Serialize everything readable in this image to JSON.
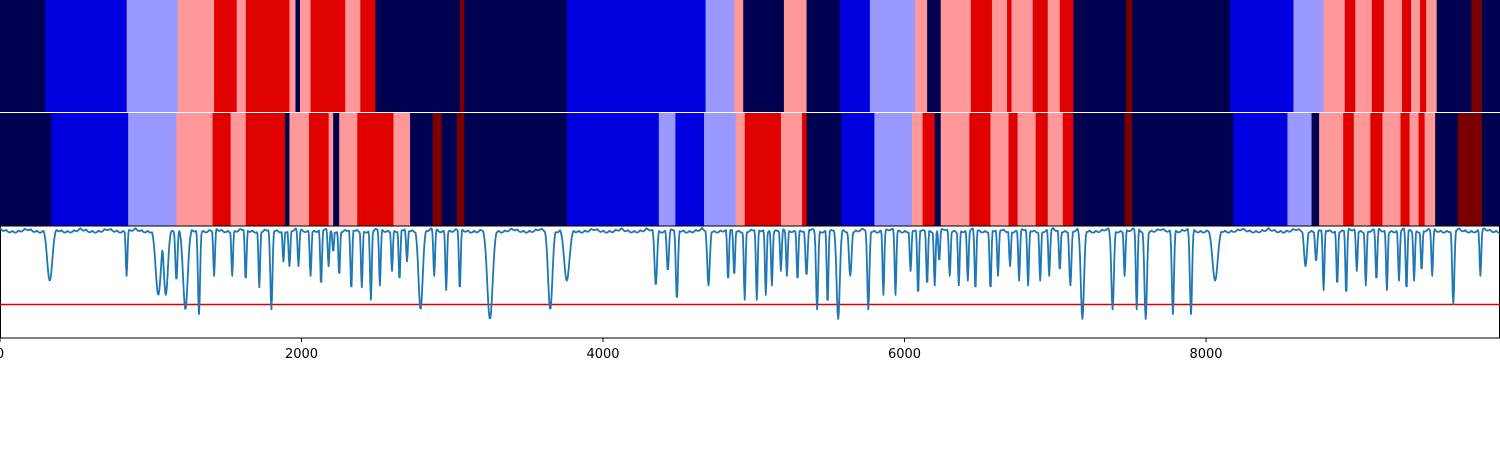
{
  "chart_data": [
    {
      "type": "heatmap",
      "panel": "top-band",
      "xlim": [
        0,
        9950
      ],
      "segments": [
        {
          "x0": 0,
          "x1": 300,
          "class": "navy"
        },
        {
          "x0": 300,
          "x1": 840,
          "class": "blue"
        },
        {
          "x0": 840,
          "x1": 1180,
          "class": "lightblue"
        },
        {
          "x0": 1180,
          "x1": 1420,
          "class": "pink"
        },
        {
          "x0": 1420,
          "x1": 1570,
          "class": "red"
        },
        {
          "x0": 1570,
          "x1": 1630,
          "class": "pink"
        },
        {
          "x0": 1630,
          "x1": 1920,
          "class": "red"
        },
        {
          "x0": 1920,
          "x1": 1960,
          "class": "pink"
        },
        {
          "x0": 1960,
          "x1": 1990,
          "class": "navy"
        },
        {
          "x0": 1990,
          "x1": 2060,
          "class": "pink"
        },
        {
          "x0": 2060,
          "x1": 2290,
          "class": "red"
        },
        {
          "x0": 2290,
          "x1": 2390,
          "class": "pink"
        },
        {
          "x0": 2390,
          "x1": 2490,
          "class": "red"
        },
        {
          "x0": 2490,
          "x1": 3050,
          "class": "navy"
        },
        {
          "x0": 3050,
          "x1": 3080,
          "class": "darkred"
        },
        {
          "x0": 3080,
          "x1": 3760,
          "class": "navy"
        },
        {
          "x0": 3760,
          "x1": 4680,
          "class": "blue"
        },
        {
          "x0": 4680,
          "x1": 4870,
          "class": "lightblue"
        },
        {
          "x0": 4870,
          "x1": 4930,
          "class": "pink"
        },
        {
          "x0": 4930,
          "x1": 5200,
          "class": "navy"
        },
        {
          "x0": 5200,
          "x1": 5350,
          "class": "pink"
        },
        {
          "x0": 5350,
          "x1": 5570,
          "class": "navy"
        },
        {
          "x0": 5570,
          "x1": 5770,
          "class": "blue"
        },
        {
          "x0": 5770,
          "x1": 6070,
          "class": "lightblue"
        },
        {
          "x0": 6070,
          "x1": 6150,
          "class": "pink"
        },
        {
          "x0": 6150,
          "x1": 6240,
          "class": "navy"
        },
        {
          "x0": 6240,
          "x1": 6440,
          "class": "pink"
        },
        {
          "x0": 6440,
          "x1": 6580,
          "class": "red"
        },
        {
          "x0": 6580,
          "x1": 6680,
          "class": "pink"
        },
        {
          "x0": 6680,
          "x1": 6710,
          "class": "red"
        },
        {
          "x0": 6710,
          "x1": 6850,
          "class": "pink"
        },
        {
          "x0": 6850,
          "x1": 6950,
          "class": "red"
        },
        {
          "x0": 6950,
          "x1": 7030,
          "class": "pink"
        },
        {
          "x0": 7030,
          "x1": 7120,
          "class": "red"
        },
        {
          "x0": 7120,
          "x1": 7470,
          "class": "navy"
        },
        {
          "x0": 7470,
          "x1": 7510,
          "class": "darkred"
        },
        {
          "x0": 7510,
          "x1": 8160,
          "class": "navy"
        },
        {
          "x0": 8160,
          "x1": 8580,
          "class": "blue"
        },
        {
          "x0": 8580,
          "x1": 8780,
          "class": "lightblue"
        },
        {
          "x0": 8780,
          "x1": 8920,
          "class": "pink"
        },
        {
          "x0": 8920,
          "x1": 8990,
          "class": "red"
        },
        {
          "x0": 8990,
          "x1": 9100,
          "class": "pink"
        },
        {
          "x0": 9100,
          "x1": 9180,
          "class": "red"
        },
        {
          "x0": 9180,
          "x1": 9300,
          "class": "pink"
        },
        {
          "x0": 9300,
          "x1": 9360,
          "class": "red"
        },
        {
          "x0": 9360,
          "x1": 9420,
          "class": "pink"
        },
        {
          "x0": 9420,
          "x1": 9460,
          "class": "red"
        },
        {
          "x0": 9460,
          "x1": 9530,
          "class": "pink"
        },
        {
          "x0": 9530,
          "x1": 9760,
          "class": "navy"
        },
        {
          "x0": 9760,
          "x1": 9830,
          "class": "darkred"
        },
        {
          "x0": 9830,
          "x1": 9950,
          "class": "navy"
        }
      ]
    },
    {
      "type": "heatmap",
      "panel": "middle-band",
      "xlim": [
        0,
        9950
      ],
      "segments": [
        {
          "x0": 0,
          "x1": 340,
          "class": "navy"
        },
        {
          "x0": 340,
          "x1": 850,
          "class": "blue"
        },
        {
          "x0": 850,
          "x1": 1170,
          "class": "lightblue"
        },
        {
          "x0": 1170,
          "x1": 1410,
          "class": "pink"
        },
        {
          "x0": 1410,
          "x1": 1530,
          "class": "red"
        },
        {
          "x0": 1530,
          "x1": 1630,
          "class": "pink"
        },
        {
          "x0": 1630,
          "x1": 1890,
          "class": "red"
        },
        {
          "x0": 1890,
          "x1": 1920,
          "class": "navy"
        },
        {
          "x0": 1920,
          "x1": 2050,
          "class": "pink"
        },
        {
          "x0": 2050,
          "x1": 2180,
          "class": "red"
        },
        {
          "x0": 2180,
          "x1": 2210,
          "class": "pink"
        },
        {
          "x0": 2210,
          "x1": 2250,
          "class": "navy"
        },
        {
          "x0": 2250,
          "x1": 2370,
          "class": "pink"
        },
        {
          "x0": 2370,
          "x1": 2610,
          "class": "red"
        },
        {
          "x0": 2610,
          "x1": 2720,
          "class": "pink"
        },
        {
          "x0": 2720,
          "x1": 2870,
          "class": "navy"
        },
        {
          "x0": 2870,
          "x1": 2930,
          "class": "darkred"
        },
        {
          "x0": 2930,
          "x1": 3030,
          "class": "navy"
        },
        {
          "x0": 3030,
          "x1": 3080,
          "class": "darkred"
        },
        {
          "x0": 3080,
          "x1": 3760,
          "class": "navy"
        },
        {
          "x0": 3760,
          "x1": 4370,
          "class": "blue"
        },
        {
          "x0": 4370,
          "x1": 4480,
          "class": "lightblue"
        },
        {
          "x0": 4480,
          "x1": 4670,
          "class": "blue"
        },
        {
          "x0": 4670,
          "x1": 4880,
          "class": "lightblue"
        },
        {
          "x0": 4880,
          "x1": 4940,
          "class": "pink"
        },
        {
          "x0": 4940,
          "x1": 5180,
          "class": "red"
        },
        {
          "x0": 5180,
          "x1": 5320,
          "class": "pink"
        },
        {
          "x0": 5320,
          "x1": 5350,
          "class": "red"
        },
        {
          "x0": 5350,
          "x1": 5580,
          "class": "navy"
        },
        {
          "x0": 5580,
          "x1": 5800,
          "class": "blue"
        },
        {
          "x0": 5800,
          "x1": 6050,
          "class": "lightblue"
        },
        {
          "x0": 6050,
          "x1": 6120,
          "class": "pink"
        },
        {
          "x0": 6120,
          "x1": 6200,
          "class": "red"
        },
        {
          "x0": 6200,
          "x1": 6240,
          "class": "navy"
        },
        {
          "x0": 6240,
          "x1": 6430,
          "class": "pink"
        },
        {
          "x0": 6430,
          "x1": 6570,
          "class": "red"
        },
        {
          "x0": 6570,
          "x1": 6690,
          "class": "pink"
        },
        {
          "x0": 6690,
          "x1": 6750,
          "class": "red"
        },
        {
          "x0": 6750,
          "x1": 6870,
          "class": "pink"
        },
        {
          "x0": 6870,
          "x1": 6950,
          "class": "red"
        },
        {
          "x0": 6950,
          "x1": 7050,
          "class": "pink"
        },
        {
          "x0": 7050,
          "x1": 7120,
          "class": "red"
        },
        {
          "x0": 7120,
          "x1": 7460,
          "class": "navy"
        },
        {
          "x0": 7460,
          "x1": 7510,
          "class": "darkred"
        },
        {
          "x0": 7510,
          "x1": 8180,
          "class": "navy"
        },
        {
          "x0": 8180,
          "x1": 8540,
          "class": "blue"
        },
        {
          "x0": 8540,
          "x1": 8700,
          "class": "lightblue"
        },
        {
          "x0": 8700,
          "x1": 8750,
          "class": "navy"
        },
        {
          "x0": 8750,
          "x1": 8910,
          "class": "pink"
        },
        {
          "x0": 8910,
          "x1": 8980,
          "class": "red"
        },
        {
          "x0": 8980,
          "x1": 9090,
          "class": "pink"
        },
        {
          "x0": 9090,
          "x1": 9170,
          "class": "red"
        },
        {
          "x0": 9170,
          "x1": 9290,
          "class": "pink"
        },
        {
          "x0": 9290,
          "x1": 9350,
          "class": "red"
        },
        {
          "x0": 9350,
          "x1": 9410,
          "class": "pink"
        },
        {
          "x0": 9410,
          "x1": 9450,
          "class": "red"
        },
        {
          "x0": 9450,
          "x1": 9520,
          "class": "pink"
        },
        {
          "x0": 9520,
          "x1": 9670,
          "class": "navy"
        },
        {
          "x0": 9670,
          "x1": 9830,
          "class": "darkred"
        },
        {
          "x0": 9830,
          "x1": 9950,
          "class": "navy"
        }
      ]
    },
    {
      "type": "line",
      "panel": "bottom-trace",
      "xlim": [
        0,
        9950
      ],
      "ylim": [
        -0.15,
        1.02
      ],
      "xticks": [
        0,
        2000,
        4000,
        6000,
        8000
      ],
      "xtick_labels": [
        "0",
        "2000",
        "4000",
        "6000",
        "8000"
      ],
      "threshold": 0.2,
      "baseline": 1.0,
      "dips": [
        [
          330,
          0.45,
          24
        ],
        [
          840,
          0.5,
          8
        ],
        [
          1050,
          0.3,
          25
        ],
        [
          1100,
          0.3,
          20
        ],
        [
          1170,
          0.45,
          10
        ],
        [
          1230,
          0.15,
          22
        ],
        [
          1320,
          0.1,
          10
        ],
        [
          1420,
          0.5,
          8
        ],
        [
          1540,
          0.5,
          8
        ],
        [
          1630,
          0.45,
          8
        ],
        [
          1720,
          0.38,
          8
        ],
        [
          1800,
          0.15,
          10
        ],
        [
          1880,
          0.65,
          8
        ],
        [
          1920,
          0.6,
          8
        ],
        [
          1980,
          0.6,
          8
        ],
        [
          2060,
          0.5,
          8
        ],
        [
          2130,
          0.4,
          8
        ],
        [
          2180,
          0.6,
          8
        ],
        [
          2210,
          0.75,
          8
        ],
        [
          2250,
          0.5,
          8
        ],
        [
          2330,
          0.35,
          8
        ],
        [
          2400,
          0.38,
          8
        ],
        [
          2460,
          0.25,
          8
        ],
        [
          2520,
          0.4,
          8
        ],
        [
          2600,
          0.55,
          8
        ],
        [
          2650,
          0.45,
          8
        ],
        [
          2700,
          0.65,
          8
        ],
        [
          2790,
          0.15,
          20
        ],
        [
          2880,
          0.5,
          8
        ],
        [
          2960,
          0.35,
          8
        ],
        [
          3050,
          0.35,
          8
        ],
        [
          3250,
          0.05,
          25
        ],
        [
          3650,
          0.15,
          20
        ],
        [
          3760,
          0.45,
          25
        ],
        [
          4350,
          0.4,
          12
        ],
        [
          4430,
          0.55,
          10
        ],
        [
          4490,
          0.25,
          10
        ],
        [
          4700,
          0.4,
          12
        ],
        [
          4830,
          0.45,
          8
        ],
        [
          4870,
          0.5,
          8
        ],
        [
          4940,
          0.25,
          8
        ],
        [
          5020,
          0.25,
          8
        ],
        [
          5080,
          0.3,
          8
        ],
        [
          5120,
          0.4,
          8
        ],
        [
          5180,
          0.55,
          8
        ],
        [
          5220,
          0.5,
          8
        ],
        [
          5290,
          0.45,
          8
        ],
        [
          5350,
          0.5,
          10
        ],
        [
          5420,
          0.15,
          10
        ],
        [
          5490,
          0.2,
          8
        ],
        [
          5560,
          0.05,
          15
        ],
        [
          5640,
          0.5,
          12
        ],
        [
          5760,
          0.15,
          10
        ],
        [
          5860,
          0.3,
          8
        ],
        [
          5940,
          0.3,
          8
        ],
        [
          6040,
          0.55,
          8
        ],
        [
          6090,
          0.3,
          8
        ],
        [
          6150,
          0.4,
          8
        ],
        [
          6200,
          0.4,
          8
        ],
        [
          6230,
          0.65,
          8
        ],
        [
          6300,
          0.5,
          8
        ],
        [
          6360,
          0.4,
          8
        ],
        [
          6420,
          0.45,
          8
        ],
        [
          6470,
          0.35,
          8
        ],
        [
          6570,
          0.35,
          8
        ],
        [
          6620,
          0.5,
          8
        ],
        [
          6700,
          0.6,
          8
        ],
        [
          6760,
          0.45,
          8
        ],
        [
          6820,
          0.4,
          8
        ],
        [
          6900,
          0.45,
          8
        ],
        [
          6960,
          0.5,
          8
        ],
        [
          7030,
          0.55,
          8
        ],
        [
          7100,
          0.4,
          10
        ],
        [
          7180,
          0.05,
          15
        ],
        [
          7380,
          0.15,
          12
        ],
        [
          7460,
          0.5,
          8
        ],
        [
          7540,
          0.15,
          8
        ],
        [
          7600,
          0.05,
          12
        ],
        [
          7780,
          0.1,
          10
        ],
        [
          7900,
          0.1,
          10
        ],
        [
          8060,
          0.45,
          25
        ],
        [
          8660,
          0.6,
          14
        ],
        [
          8730,
          0.65,
          10
        ],
        [
          8780,
          0.35,
          8
        ],
        [
          8870,
          0.4,
          8
        ],
        [
          8930,
          0.3,
          8
        ],
        [
          9000,
          0.55,
          8
        ],
        [
          9060,
          0.4,
          8
        ],
        [
          9130,
          0.45,
          8
        ],
        [
          9200,
          0.35,
          8
        ],
        [
          9280,
          0.45,
          8
        ],
        [
          9330,
          0.35,
          8
        ],
        [
          9380,
          0.45,
          8
        ],
        [
          9430,
          0.55,
          8
        ],
        [
          9500,
          0.5,
          8
        ],
        [
          9640,
          0.2,
          10
        ],
        [
          9820,
          0.5,
          8
        ]
      ]
    }
  ],
  "colors": {
    "navy": "#000050",
    "blue": "#0000e0",
    "lightblue": "#9999ff",
    "pink": "#ff9999",
    "red": "#e00000",
    "darkred": "#7a0000",
    "line": "#1f77b4",
    "threshold": "#e00000"
  }
}
